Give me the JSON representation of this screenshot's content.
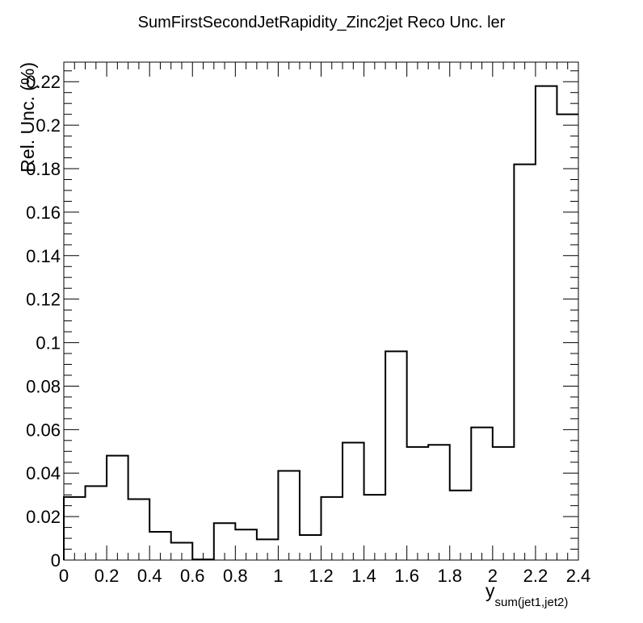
{
  "chart_data": {
    "type": "histogram",
    "title": "SumFirstSecondJetRapidity_Zinc2jet Reco Unc. ler",
    "ylabel": "Rel. Unc. (%)",
    "xlabel": {
      "main": "y",
      "subscript": "sum(jet1,jet2)"
    },
    "xlim": [
      0,
      2.4
    ],
    "ylim": [
      0,
      0.229
    ],
    "bin_edges": [
      0,
      0.1,
      0.2,
      0.3,
      0.4,
      0.5,
      0.6,
      0.7,
      0.8,
      0.9,
      1.0,
      1.1,
      1.2,
      1.3,
      1.4,
      1.5,
      1.6,
      1.7,
      1.8,
      1.9,
      2.0,
      2.1,
      2.2,
      2.3,
      2.4
    ],
    "values": [
      0.029,
      0.034,
      0.048,
      0.028,
      0.013,
      0.008,
      0.0003,
      0.017,
      0.014,
      0.0095,
      0.041,
      0.0115,
      0.029,
      0.054,
      0.03,
      0.096,
      0.052,
      0.053,
      0.032,
      0.061,
      0.052,
      0.182,
      0.218,
      0.205
    ],
    "x_tick_labels": [
      {
        "value": 0,
        "label": "0"
      },
      {
        "value": 0.2,
        "label": "0.2"
      },
      {
        "value": 0.4,
        "label": "0.4"
      },
      {
        "value": 0.6,
        "label": "0.6"
      },
      {
        "value": 0.8,
        "label": "0.8"
      },
      {
        "value": 1.0,
        "label": "1"
      },
      {
        "value": 1.2,
        "label": "1.2"
      },
      {
        "value": 1.4,
        "label": "1.4"
      },
      {
        "value": 1.6,
        "label": "1.6"
      },
      {
        "value": 1.8,
        "label": "1.8"
      },
      {
        "value": 2.0,
        "label": "2"
      },
      {
        "value": 2.2,
        "label": "2.2"
      },
      {
        "value": 2.4,
        "label": "2.4"
      }
    ],
    "y_tick_labels": [
      {
        "value": 0,
        "label": "0"
      },
      {
        "value": 0.02,
        "label": "0.02"
      },
      {
        "value": 0.04,
        "label": "0.04"
      },
      {
        "value": 0.06,
        "label": "0.06"
      },
      {
        "value": 0.08,
        "label": "0.08"
      },
      {
        "value": 0.1,
        "label": "0.1"
      },
      {
        "value": 0.12,
        "label": "0.12"
      },
      {
        "value": 0.14,
        "label": "0.14"
      },
      {
        "value": 0.16,
        "label": "0.16"
      },
      {
        "value": 0.18,
        "label": "0.18"
      },
      {
        "value": 0.2,
        "label": "0.2"
      },
      {
        "value": 0.22,
        "label": "0.22"
      }
    ],
    "x_minor_step": 0.05,
    "y_minor_step": 0.005,
    "grid": false,
    "legend": "none",
    "line_color": "#000000"
  }
}
